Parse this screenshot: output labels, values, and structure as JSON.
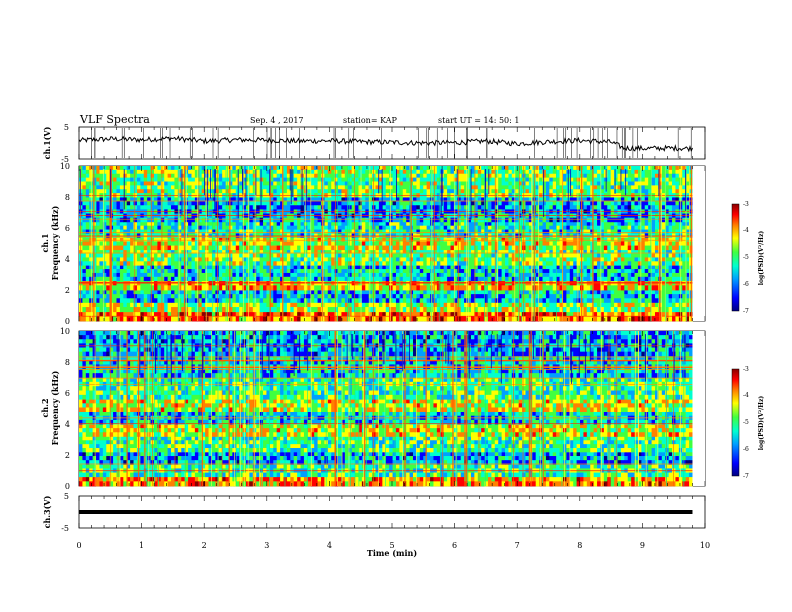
{
  "header": {
    "title": "VLF Spectra",
    "date": "Sep. 4 , 2017",
    "station": "station= KAP",
    "start": "start UT =  14: 50: 1"
  },
  "colors": {
    "waveform": "#000000",
    "colormap": [
      "#00007f",
      "#0000ff",
      "#00a0ff",
      "#00ffd0",
      "#40ff40",
      "#ffff00",
      "#ff8000",
      "#ff0000",
      "#8a0000"
    ]
  },
  "chart_data": [
    {
      "type": "line",
      "panel": "ch1-waveform",
      "ylabel": "ch.1(V)",
      "ylim": [
        -5,
        5
      ],
      "yticks": [
        "5",
        "-5"
      ],
      "xlim": [
        0,
        10
      ],
      "x": [
        0,
        0.5,
        1,
        1.5,
        2,
        2.5,
        3,
        3.5,
        4,
        4.5,
        5,
        5.5,
        6,
        6.5,
        7,
        7.5,
        8,
        8.5,
        8.7,
        9,
        9.5,
        9.8
      ],
      "y": [
        0.8,
        1.3,
        1.0,
        1.5,
        0.6,
        1.0,
        0.9,
        0.6,
        0.7,
        0.4,
        0.2,
        0.0,
        0.1,
        0.6,
        -0.2,
        0.4,
        0.8,
        0.3,
        -1.6,
        -1.7,
        -1.6,
        -1.7
      ]
    },
    {
      "type": "heatmap",
      "panel": "ch1-spectrogram",
      "ylabel": "ch.1\nFrequency (kHz)",
      "ylim": [
        0,
        10
      ],
      "yticks": [
        "0",
        "2",
        "4",
        "6",
        "8",
        "10"
      ],
      "xlim": [
        0,
        9.8
      ],
      "colorbar": {
        "label": "log(PSD)(V²/Hz)",
        "range": [
          -7,
          -3
        ],
        "ticks": [
          "-3",
          "-4",
          "-5",
          "-6",
          "-7"
        ]
      },
      "bands_khz": [
        {
          "f0": 0.0,
          "f1": 0.6,
          "level": -4.0
        },
        {
          "f0": 0.6,
          "f1": 1.2,
          "level": -4.8
        },
        {
          "f0": 1.2,
          "f1": 2.0,
          "level": -5.6
        },
        {
          "f0": 2.0,
          "f1": 2.6,
          "level": -4.4
        },
        {
          "f0": 2.6,
          "f1": 3.6,
          "level": -5.6
        },
        {
          "f0": 3.6,
          "f1": 4.6,
          "level": -5.0
        },
        {
          "f0": 4.6,
          "f1": 5.4,
          "level": -4.6
        },
        {
          "f0": 5.4,
          "f1": 6.4,
          "level": -5.4
        },
        {
          "f0": 6.4,
          "f1": 8.0,
          "level": -5.8
        },
        {
          "f0": 8.0,
          "f1": 10.0,
          "level": -5.0
        }
      ]
    },
    {
      "type": "heatmap",
      "panel": "ch2-spectrogram",
      "ylabel": "ch.2\nFrequency (kHz)",
      "ylim": [
        0,
        10
      ],
      "yticks": [
        "0",
        "2",
        "4",
        "6",
        "8",
        "10"
      ],
      "xlim": [
        0,
        9.8
      ],
      "colorbar": {
        "label": "log(PSD)(V²/Hz)",
        "range": [
          -7,
          -3
        ],
        "ticks": [
          "-3",
          "-4",
          "-5",
          "-6",
          "-7"
        ]
      },
      "bands_khz": [
        {
          "f0": 0.0,
          "f1": 0.6,
          "level": -4.2
        },
        {
          "f0": 0.6,
          "f1": 1.4,
          "level": -5.2
        },
        {
          "f0": 1.4,
          "f1": 2.2,
          "level": -5.8
        },
        {
          "f0": 2.2,
          "f1": 3.2,
          "level": -5.2
        },
        {
          "f0": 3.2,
          "f1": 4.0,
          "level": -4.6
        },
        {
          "f0": 4.0,
          "f1": 4.8,
          "level": -5.6
        },
        {
          "f0": 4.8,
          "f1": 5.6,
          "level": -4.6
        },
        {
          "f0": 5.6,
          "f1": 7.0,
          "level": -5.2
        },
        {
          "f0": 7.0,
          "f1": 8.4,
          "level": -5.6
        },
        {
          "f0": 8.4,
          "f1": 10.0,
          "level": -5.8
        }
      ]
    },
    {
      "type": "line",
      "panel": "ch3-waveform",
      "ylabel": "ch.3(V)",
      "ylim": [
        -5,
        5
      ],
      "yticks": [
        "5",
        "-5"
      ],
      "xlim": [
        0,
        10
      ],
      "x": [
        0,
        9.8
      ],
      "y": [
        0,
        0
      ],
      "xlabel": "Time (min)",
      "xticks": [
        "0",
        "1",
        "2",
        "3",
        "4",
        "5",
        "6",
        "7",
        "8",
        "9",
        "10"
      ]
    }
  ]
}
